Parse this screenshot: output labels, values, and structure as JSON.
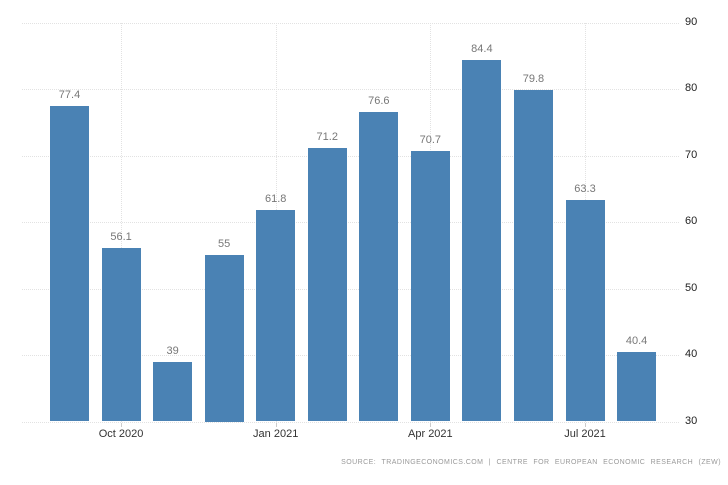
{
  "chart_data": {
    "type": "bar",
    "title": "",
    "xlabel": "",
    "ylabel": "",
    "values": [
      77.4,
      56.1,
      39,
      55,
      61.8,
      71.2,
      76.6,
      70.7,
      84.4,
      79.8,
      63.3,
      40.4
    ],
    "bar_value_labels": [
      "77.4",
      "56.1",
      "39",
      "55",
      "61.8",
      "71.2",
      "76.6",
      "70.7",
      "84.4",
      "79.8",
      "63.3",
      "40.4"
    ],
    "x_ticks": [
      {
        "bar_index": 1,
        "label": "Oct 2020"
      },
      {
        "bar_index": 4,
        "label": "Jan 2021"
      },
      {
        "bar_index": 7,
        "label": "Apr 2021"
      },
      {
        "bar_index": 10,
        "label": "Jul 2021"
      }
    ],
    "y_ticks": [
      30,
      40,
      50,
      60,
      70,
      80,
      90
    ],
    "ylim": [
      30,
      90
    ],
    "y_axis_side": "right",
    "grid": "dotted, horizontal at every y tick and vertical at every x tick",
    "legend": "none",
    "colors": {
      "bar": "#4a82b4",
      "grid": "#e2e2e2",
      "value_label": "#777777",
      "y_axis_label": "#222222",
      "x_axis_label": "#333333",
      "tick_mark": "#cccccc",
      "source_text": "#999999",
      "background": "#ffffff"
    }
  },
  "footer": {
    "source_text": "SOURCE: TRADINGECONOMICS.COM | CENTRE FOR EUROPEAN ECONOMIC RESEARCH (ZEW)"
  }
}
